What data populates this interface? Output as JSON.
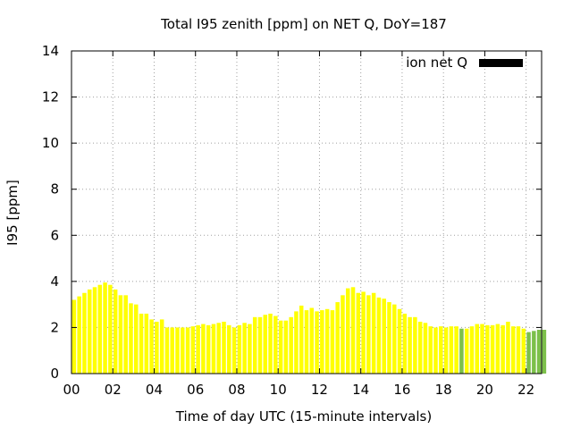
{
  "chart_data": {
    "type": "bar",
    "title": "Total I95 zenith [ppm] on NET Q, DoY=187",
    "xlabel": "Time of day UTC (15-minute intervals)",
    "ylabel": "I95 [ppm]",
    "ylim": [
      0,
      14
    ],
    "xlim_hours": [
      0,
      22.75
    ],
    "interval_hours": 0.25,
    "yticks": [
      "0",
      "2",
      "4",
      "6",
      "8",
      "10",
      "12",
      "14"
    ],
    "xticks": [
      "00",
      "02",
      "04",
      "06",
      "08",
      "10",
      "12",
      "14",
      "16",
      "18",
      "20",
      "22"
    ],
    "grid": true,
    "legend": {
      "label": "ion net Q",
      "position": "top-right"
    },
    "colors": {
      "default": "#ffff00",
      "alternate": "#7cc04a",
      "legend_swatch": "#000000"
    },
    "series": [
      {
        "values": [
          3.2,
          3.35,
          3.5,
          3.65,
          3.75,
          3.85,
          3.95,
          3.85,
          3.65,
          3.4,
          3.4,
          3.05,
          3.0,
          2.6,
          2.6,
          2.35,
          2.25,
          2.35,
          2.0,
          2.0,
          2.0,
          2.0,
          2.0,
          2.05,
          2.1,
          2.15,
          2.1,
          2.15,
          2.2,
          2.25,
          2.1,
          2.0,
          2.1,
          2.2,
          2.15,
          2.45,
          2.45,
          2.55,
          2.6,
          2.5,
          2.3,
          2.3,
          2.45,
          2.7,
          2.95,
          2.75,
          2.85,
          2.7,
          2.75,
          2.8,
          2.75,
          3.1,
          3.4,
          3.7,
          3.75,
          3.5,
          3.55,
          3.4,
          3.5,
          3.3,
          3.25,
          3.1,
          3.0,
          2.8,
          2.6,
          2.45,
          2.45,
          2.25,
          2.2,
          2.05,
          2.0,
          2.05,
          2.0,
          2.05,
          2.05,
          1.95,
          1.95,
          2.05,
          2.15,
          2.15,
          2.1,
          2.1,
          2.15,
          2.1,
          2.25,
          2.05,
          2.05,
          1.95,
          1.8,
          1.85,
          1.9,
          1.9
        ],
        "alternate_indices": [
          75,
          88,
          89,
          90,
          91
        ]
      }
    ]
  }
}
